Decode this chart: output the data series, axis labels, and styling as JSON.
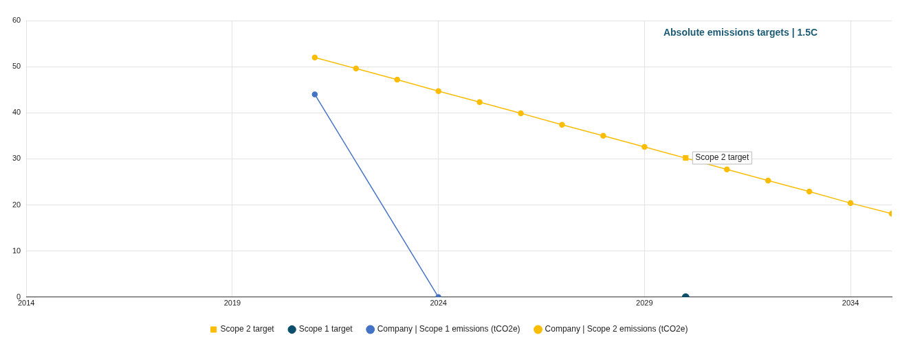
{
  "chart_data": {
    "type": "line",
    "title": "Absolute emissions targets | 1.5C",
    "xlim": [
      2014,
      2035
    ],
    "xticks": [
      2014,
      2019,
      2024,
      2029,
      2034
    ],
    "ylim": [
      0,
      60
    ],
    "yticks": [
      0,
      10,
      20,
      30,
      40,
      50,
      60
    ],
    "grid": true,
    "legend": "bottom",
    "marker": "circle",
    "series": [
      {
        "name": "Scope 2 target",
        "type": "scatter",
        "marker": "square",
        "color": "#fbbc04",
        "x": [
          2030
        ],
        "values": [
          30.2
        ]
      },
      {
        "name": "Scope 1 target",
        "type": "scatter",
        "marker": "circle",
        "color": "#0b4f6c",
        "x": [
          2030
        ],
        "values": [
          0
        ]
      },
      {
        "name": "Company | Scope 1 emissions (tCO2e)",
        "type": "line",
        "color": "#4472c4",
        "x": [
          2021,
          2024
        ],
        "values": [
          44,
          0
        ]
      },
      {
        "name": "Company | Scope 2 emissions (tCO2e)",
        "type": "line",
        "color": "#fbbc04",
        "x": [
          2021,
          2022,
          2023,
          2024,
          2025,
          2026,
          2027,
          2028,
          2029,
          2030,
          2031,
          2032,
          2033,
          2034,
          2035
        ],
        "values": [
          52,
          49.6,
          47.2,
          44.7,
          42.3,
          39.9,
          37.4,
          35.0,
          32.6,
          null,
          27.7,
          25.3,
          22.9,
          20.4,
          18.1
        ]
      }
    ],
    "annotations": [
      {
        "text": "Scope 2 target",
        "x": 2030,
        "y": 30.2
      }
    ]
  }
}
